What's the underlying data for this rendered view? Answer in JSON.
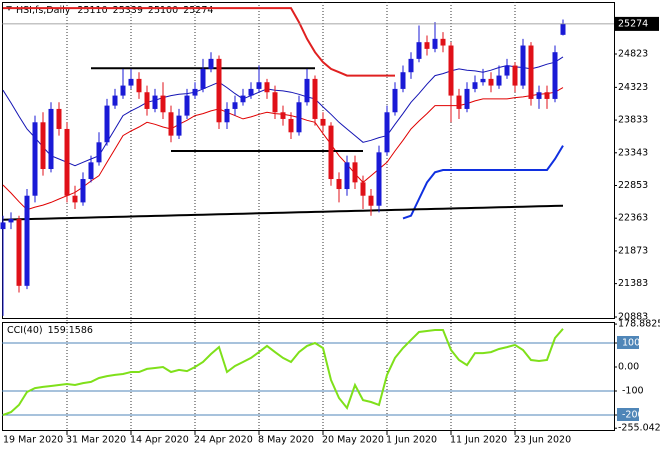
{
  "chart_data": [
    {
      "type": "candlestick",
      "title": "HSI,fs,Daily",
      "categories": [
        "19 Mar 2020",
        null,
        null,
        null,
        null,
        null,
        null,
        null,
        "31 Mar 2020",
        null,
        null,
        null,
        null,
        null,
        null,
        null,
        "14 Apr 2020",
        null,
        null,
        null,
        null,
        null,
        null,
        null,
        "24 Apr 2020",
        null,
        null,
        null,
        null,
        null,
        null,
        null,
        "8 May 2020",
        null,
        null,
        null,
        null,
        null,
        null,
        null,
        "20 May 2020",
        null,
        null,
        null,
        null,
        null,
        null,
        null,
        "1 Jun 2020",
        null,
        null,
        null,
        null,
        null,
        null,
        null,
        "11 Jun 2020",
        null,
        null,
        null,
        null,
        null,
        null,
        null,
        "23 Jun 2020",
        null,
        null,
        null,
        null,
        null,
        null
      ],
      "open": [
        22200,
        22300,
        22350,
        21350,
        22700,
        23800,
        23100,
        24000,
        23700,
        22700,
        22600,
        22950,
        23200,
        23500,
        24050,
        24200,
        24350,
        24450,
        24250,
        24000,
        24200,
        23950,
        23600,
        23900,
        24200,
        24300,
        24600,
        24750,
        23800,
        24000,
        24100,
        24200,
        24300,
        24400,
        24250,
        23950,
        23850,
        23650,
        24100,
        24450,
        23850,
        23750,
        22950,
        22800,
        23200,
        22900,
        22700,
        22550,
        23350,
        23950,
        24300,
        24550,
        24750,
        25000,
        24900,
        25050,
        24950,
        24200,
        24000,
        24300,
        24400,
        24450,
        24350,
        24500,
        24650,
        24350,
        24950,
        24150,
        24250,
        24150,
        25110
      ],
      "high": [
        22400,
        22450,
        22400,
        22800,
        23900,
        23950,
        24100,
        24100,
        23800,
        22850,
        23050,
        23300,
        23650,
        24150,
        24300,
        24600,
        24600,
        24550,
        24350,
        24300,
        24400,
        24050,
        24000,
        24300,
        24400,
        24750,
        24850,
        24800,
        24100,
        24200,
        24300,
        24400,
        24650,
        24450,
        24350,
        24050,
        23950,
        24200,
        24600,
        24500,
        23950,
        23800,
        23050,
        23300,
        23300,
        23000,
        22800,
        23450,
        24050,
        24400,
        24650,
        24850,
        25250,
        25100,
        25300,
        25150,
        25000,
        24300,
        24400,
        24500,
        24600,
        24550,
        24650,
        24750,
        24700,
        25050,
        25000,
        24350,
        24350,
        24950,
        25339
      ],
      "low": [
        20900,
        22200,
        21250,
        21300,
        22600,
        23000,
        23050,
        23600,
        22600,
        22500,
        22550,
        22900,
        23150,
        23450,
        24000,
        24150,
        24300,
        24150,
        23900,
        23950,
        23850,
        23500,
        23550,
        23850,
        24150,
        24250,
        24550,
        23700,
        23700,
        23900,
        24050,
        24150,
        24250,
        24150,
        23850,
        23750,
        23550,
        23600,
        24050,
        23750,
        23650,
        22850,
        22600,
        22700,
        22800,
        22500,
        22400,
        22450,
        23300,
        23900,
        24250,
        24450,
        24700,
        24800,
        24850,
        24850,
        23800,
        23850,
        23950,
        24250,
        24350,
        24250,
        24300,
        24450,
        24250,
        24300,
        24050,
        24000,
        24000,
        24100,
        25100
      ],
      "close": [
        22300,
        22350,
        21350,
        22700,
        23800,
        23100,
        24000,
        23700,
        22700,
        22600,
        22950,
        23200,
        23500,
        24050,
        24200,
        24350,
        24450,
        24250,
        24000,
        24200,
        23950,
        23600,
        23900,
        24200,
        24300,
        24600,
        24750,
        23800,
        24000,
        24100,
        24200,
        24300,
        24400,
        24250,
        23950,
        23850,
        23650,
        24100,
        24450,
        23850,
        23750,
        22950,
        22800,
        23200,
        22900,
        22700,
        22550,
        23350,
        23950,
        24300,
        24550,
        24750,
        25000,
        24900,
        25050,
        24950,
        24200,
        24000,
        24300,
        24400,
        24450,
        24350,
        24500,
        24650,
        24350,
        24950,
        24150,
        24250,
        24150,
        24850,
        25274
      ],
      "up_color": "#1a1ad6",
      "down_color": "#e01018",
      "lines": [
        {
          "color": "#1414b4",
          "width": 1,
          "values": [
            24280,
            24090,
            23890,
            23700,
            23570,
            23430,
            23300,
            23250,
            23200,
            23150,
            23200,
            23250,
            23300,
            23500,
            23700,
            23900,
            23970,
            24030,
            24100,
            24130,
            24170,
            24200,
            24220,
            24230,
            24250,
            24300,
            24350,
            24400,
            24320,
            24230,
            24150,
            24200,
            24250,
            24300,
            24280,
            24270,
            24250,
            24220,
            24180,
            24150,
            24030,
            23920,
            23800,
            23700,
            23600,
            23500,
            23530,
            23570,
            23600,
            23770,
            23930,
            24100,
            24230,
            24370,
            24500,
            24530,
            24570,
            24600,
            24580,
            24570,
            24550,
            24580,
            24620,
            24650,
            24630,
            24620,
            24600,
            24630,
            24670,
            24700,
            24780
          ]
        },
        {
          "color": "#e00000",
          "width": 1,
          "values": [
            22860,
            22740,
            22610,
            22490,
            22530,
            22560,
            22600,
            22650,
            22700,
            22750,
            22830,
            22920,
            23000,
            23200,
            23400,
            23600,
            23670,
            23730,
            23800,
            23770,
            23730,
            23700,
            23770,
            23830,
            23900,
            23930,
            23970,
            24000,
            23950,
            23900,
            23850,
            23880,
            23920,
            23950,
            23930,
            23920,
            23900,
            23870,
            23830,
            23800,
            23630,
            23470,
            23300,
            23170,
            23030,
            22900,
            23000,
            23100,
            23200,
            23370,
            23530,
            23700,
            23820,
            23930,
            24050,
            24050,
            24050,
            24050,
            24080,
            24120,
            24150,
            24150,
            24150,
            24150,
            24170,
            24180,
            24200,
            24220,
            24230,
            24250,
            24320
          ]
        },
        {
          "color": "#e02020",
          "width": 2,
          "values": [
            25510,
            25510,
            25510,
            25510,
            25510,
            25510,
            25510,
            25510,
            25510,
            25510,
            25510,
            25510,
            25510,
            25510,
            25510,
            25510,
            25510,
            25510,
            25510,
            25510,
            25510,
            25510,
            25510,
            25510,
            25510,
            25510,
            25510,
            25510,
            25510,
            25510,
            25510,
            25510,
            25510,
            25510,
            25510,
            25510,
            25510,
            25300,
            25050,
            24850,
            24700,
            24600,
            24550,
            24500,
            24500,
            24500,
            24500,
            24500,
            24500,
            24500,
            null,
            null,
            null,
            null,
            null,
            null,
            null,
            null,
            null,
            null,
            null,
            null,
            null,
            null,
            null,
            null,
            null,
            null,
            null,
            null,
            null
          ]
        },
        {
          "color": "#1030e0",
          "width": 2,
          "values": [
            null,
            null,
            null,
            null,
            null,
            null,
            null,
            null,
            null,
            null,
            null,
            null,
            null,
            null,
            null,
            null,
            null,
            null,
            null,
            null,
            null,
            null,
            null,
            null,
            null,
            null,
            null,
            null,
            null,
            null,
            null,
            null,
            null,
            null,
            null,
            null,
            null,
            null,
            null,
            null,
            null,
            null,
            null,
            null,
            null,
            null,
            null,
            null,
            null,
            null,
            22360,
            22400,
            22650,
            22900,
            23050,
            23085,
            23085,
            23085,
            23085,
            23085,
            23085,
            23085,
            23085,
            23085,
            23085,
            23085,
            23085,
            23085,
            23085,
            23250,
            23450
          ]
        },
        {
          "color": "#000000",
          "width": 2,
          "values": [
            22340,
            22343,
            22346,
            22349,
            22352,
            22355,
            22358,
            22361,
            22364,
            22367,
            22370,
            22373,
            22376,
            22379,
            22382,
            22385,
            22388,
            22391,
            22394,
            22397,
            22400,
            22403,
            22406,
            22409,
            22412,
            22415,
            22418,
            22421,
            22424,
            22427,
            22430,
            22433,
            22436,
            22439,
            22442,
            22445,
            22448,
            22451,
            22454,
            22457,
            22460,
            22463,
            22466,
            22469,
            22472,
            22475,
            22478,
            22481,
            22484,
            22487,
            22490,
            22493,
            22496,
            22499,
            22502,
            22505,
            22508,
            22511,
            22514,
            22517,
            22520,
            22523,
            22526,
            22529,
            22532,
            22535,
            22538,
            22541,
            22544,
            22547,
            22550
          ]
        },
        {
          "color": "#000000",
          "width": 2,
          "values": [
            null,
            null,
            null,
            null,
            null,
            null,
            null,
            null,
            null,
            null,
            null,
            24610,
            24610,
            24610,
            24610,
            24610,
            24610,
            24610,
            24610,
            24610,
            24610,
            24610,
            24610,
            24610,
            24610,
            24610,
            24610,
            24610,
            24610,
            24610,
            24610,
            24610,
            24610,
            24610,
            24610,
            24610,
            24610,
            24610,
            24610,
            24610,
            null,
            null,
            null,
            null,
            null,
            null,
            null,
            null,
            null,
            null,
            null,
            null,
            null,
            null,
            null,
            null,
            null,
            null,
            null,
            null,
            null,
            null,
            null,
            null,
            null,
            null,
            null,
            null,
            null,
            null,
            null
          ]
        },
        {
          "color": "#000000",
          "width": 2,
          "values": [
            null,
            null,
            null,
            null,
            null,
            null,
            null,
            null,
            null,
            null,
            null,
            null,
            null,
            null,
            null,
            null,
            null,
            null,
            null,
            null,
            null,
            23370,
            23370,
            23370,
            23370,
            23370,
            23370,
            23370,
            23370,
            23370,
            23370,
            23370,
            23370,
            23370,
            23370,
            23370,
            23370,
            23370,
            23370,
            23370,
            23370,
            23370,
            23370,
            23370,
            23370,
            23370,
            null,
            null,
            null,
            null,
            null,
            null,
            null,
            null,
            null,
            null,
            null,
            null,
            null,
            null,
            null,
            null,
            null,
            null,
            null,
            null,
            null,
            null,
            null,
            null,
            null
          ]
        }
      ],
      "ylim": [
        20868,
        25602
      ],
      "yticks": [
        24823,
        24323,
        23833,
        23343,
        22853,
        22363,
        21873,
        21383,
        20883
      ]
    },
    {
      "type": "line",
      "title": "CCI(40)",
      "series": [
        {
          "color": "#7fe01a",
          "values": [
            -200,
            -188,
            -158,
            -104,
            -88,
            -83,
            -79,
            -75,
            -71,
            -75,
            -67,
            -62,
            -46,
            -38,
            -33,
            -29,
            -21,
            -21,
            -8,
            -4,
            0,
            -21,
            -12,
            -17,
            0,
            21,
            54,
            83,
            -21,
            4,
            21,
            38,
            62,
            88,
            62,
            38,
            21,
            62,
            88,
            100,
            79,
            -54,
            -129,
            -171,
            -75,
            -138,
            -146,
            -158,
            -33,
            38,
            79,
            113,
            146,
            150,
            154,
            154,
            71,
            29,
            8,
            58,
            58,
            62,
            75,
            83,
            92,
            71,
            29,
            25,
            29,
            121,
            159.1586
          ]
        }
      ],
      "ylim": [
        -262.5,
        187.5
      ],
      "yticks": [
        178.8825,
        100,
        {
          "value": 0,
          "label": "0.00"
        },
        -100,
        {
          "value": -200,
          "label": "-200"
        },
        -255.042
      ],
      "levels": [
        100,
        -100,
        -200
      ],
      "highlight": -200,
      "level_color": "#4f86b8"
    }
  ]
}
